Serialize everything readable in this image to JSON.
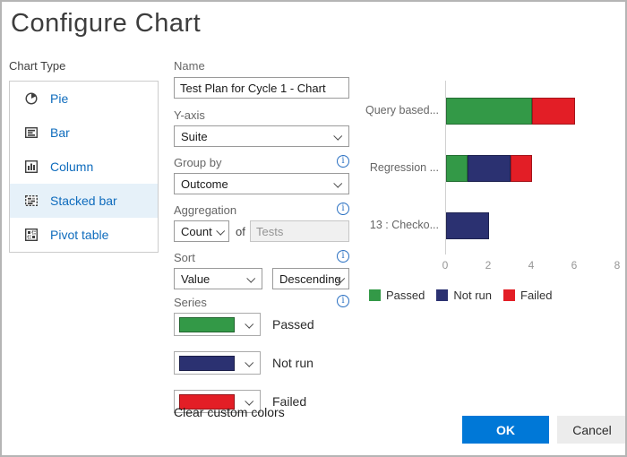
{
  "dialog": {
    "title": "Configure Chart"
  },
  "chart_type": {
    "label": "Chart Type",
    "items": [
      {
        "label": "Pie",
        "selected": false
      },
      {
        "label": "Bar",
        "selected": false
      },
      {
        "label": "Column",
        "selected": false
      },
      {
        "label": "Stacked bar",
        "selected": true
      },
      {
        "label": "Pivot table",
        "selected": false
      }
    ]
  },
  "form": {
    "name": {
      "label": "Name",
      "value": "Test Plan for Cycle 1 - Chart"
    },
    "y_axis": {
      "label": "Y-axis",
      "value": "Suite"
    },
    "group_by": {
      "label": "Group by",
      "value": "Outcome"
    },
    "aggregation": {
      "label": "Aggregation",
      "value": "Count",
      "of_label": "of",
      "field_value": "Tests"
    },
    "sort": {
      "label": "Sort",
      "field": "Value",
      "order": "Descending"
    },
    "series": {
      "label": "Series",
      "items": [
        {
          "label": "Passed",
          "color": "#339947"
        },
        {
          "label": "Not run",
          "color": "#2b3171"
        },
        {
          "label": "Failed",
          "color": "#e31e26"
        }
      ]
    },
    "clear_colors_label": "Clear custom colors"
  },
  "buttons": {
    "ok": "OK",
    "cancel": "Cancel"
  },
  "chart_data": {
    "type": "bar",
    "orientation": "horizontal",
    "stacked": true,
    "categories": [
      "Query based...",
      "Regression ...",
      "13 : Checko..."
    ],
    "series": [
      {
        "name": "Passed",
        "color": "#339947",
        "values": [
          4,
          1,
          0
        ]
      },
      {
        "name": "Not run",
        "color": "#2b3171",
        "values": [
          0,
          2,
          2
        ]
      },
      {
        "name": "Failed",
        "color": "#e31e26",
        "values": [
          2,
          1,
          0
        ]
      }
    ],
    "xlim": [
      0,
      8
    ],
    "x_ticks": [
      0,
      2,
      4,
      6,
      8
    ],
    "legend": [
      "Passed",
      "Not run",
      "Failed"
    ],
    "legend_position": "bottom",
    "grid": false
  },
  "colors": {
    "accent_blue": "#0078d7",
    "link_blue": "#0f6cbd",
    "selected_item_bg": "#e6f1f9",
    "passed": "#339947",
    "not_run": "#2b3171",
    "failed": "#e31e26"
  }
}
